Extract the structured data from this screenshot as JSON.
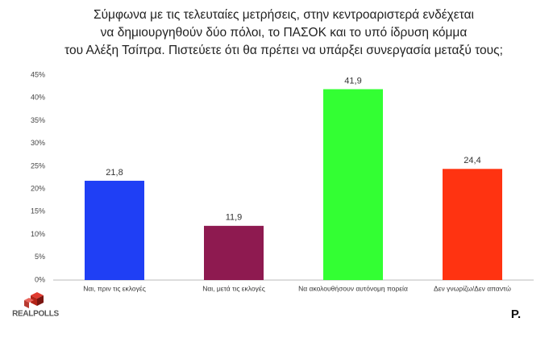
{
  "chart_data": {
    "type": "bar",
    "title": [
      "Σύμφωνα με τις τελευταίες μετρήσεις, στην κεντροαριστερά ενδέχεται",
      "να δημιουργηθούν δύο πόλοι, το ΠΑΣΟΚ και το υπό ίδρυση κόμμα",
      "του Αλέξη Τσίπρα. Πιστεύετε ότι θα πρέπει να υπάρξει συνεργασία μεταξύ τους;"
    ],
    "categories": [
      "Ναι, πριν τις εκλογές",
      "Ναι, μετά τις εκλογές",
      "Να ακολουθήσουν αυτόνομη πορεία",
      "Δεν γνωρίζω/Δεν απαντώ"
    ],
    "values": [
      21.8,
      11.9,
      41.9,
      24.4
    ],
    "value_labels": [
      "21,8",
      "11,9",
      "41,9",
      "24,4"
    ],
    "colors": [
      "#1f3ff5",
      "#8e1a50",
      "#33ff33",
      "#ff3311"
    ],
    "ylim": [
      0,
      45
    ],
    "yticks": [
      {
        "value": 0,
        "label": "0%"
      },
      {
        "value": 5,
        "label": "5%"
      },
      {
        "value": 10,
        "label": "10%"
      },
      {
        "value": 15,
        "label": "15%"
      },
      {
        "value": 20,
        "label": "20%"
      },
      {
        "value": 25,
        "label": "25%"
      },
      {
        "value": 30,
        "label": "30%"
      },
      {
        "value": 35,
        "label": "35%"
      },
      {
        "value": 40,
        "label": "40%"
      },
      {
        "value": 45,
        "label": "45%"
      }
    ],
    "grid": false,
    "logo": "REALPOLLS",
    "brand": "P."
  }
}
